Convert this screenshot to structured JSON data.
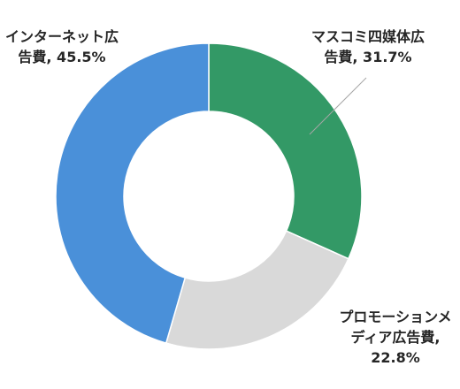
{
  "chart_data": {
    "type": "pie",
    "variant": "donut",
    "legend": "none",
    "slices": [
      {
        "label_lines": [
          "マスコミ四媒体広",
          "告費, 31.7%"
        ],
        "value": 31.7,
        "color": "#339966"
      },
      {
        "label_lines": [
          "プロモーションメ",
          "ディア広告費,",
          "22.8%"
        ],
        "value": 22.8,
        "color": "#d9d9d9"
      },
      {
        "label_lines": [
          "インターネット広",
          "告費, 45.5%"
        ],
        "value": 45.5,
        "color": "#4a90d9"
      }
    ]
  }
}
